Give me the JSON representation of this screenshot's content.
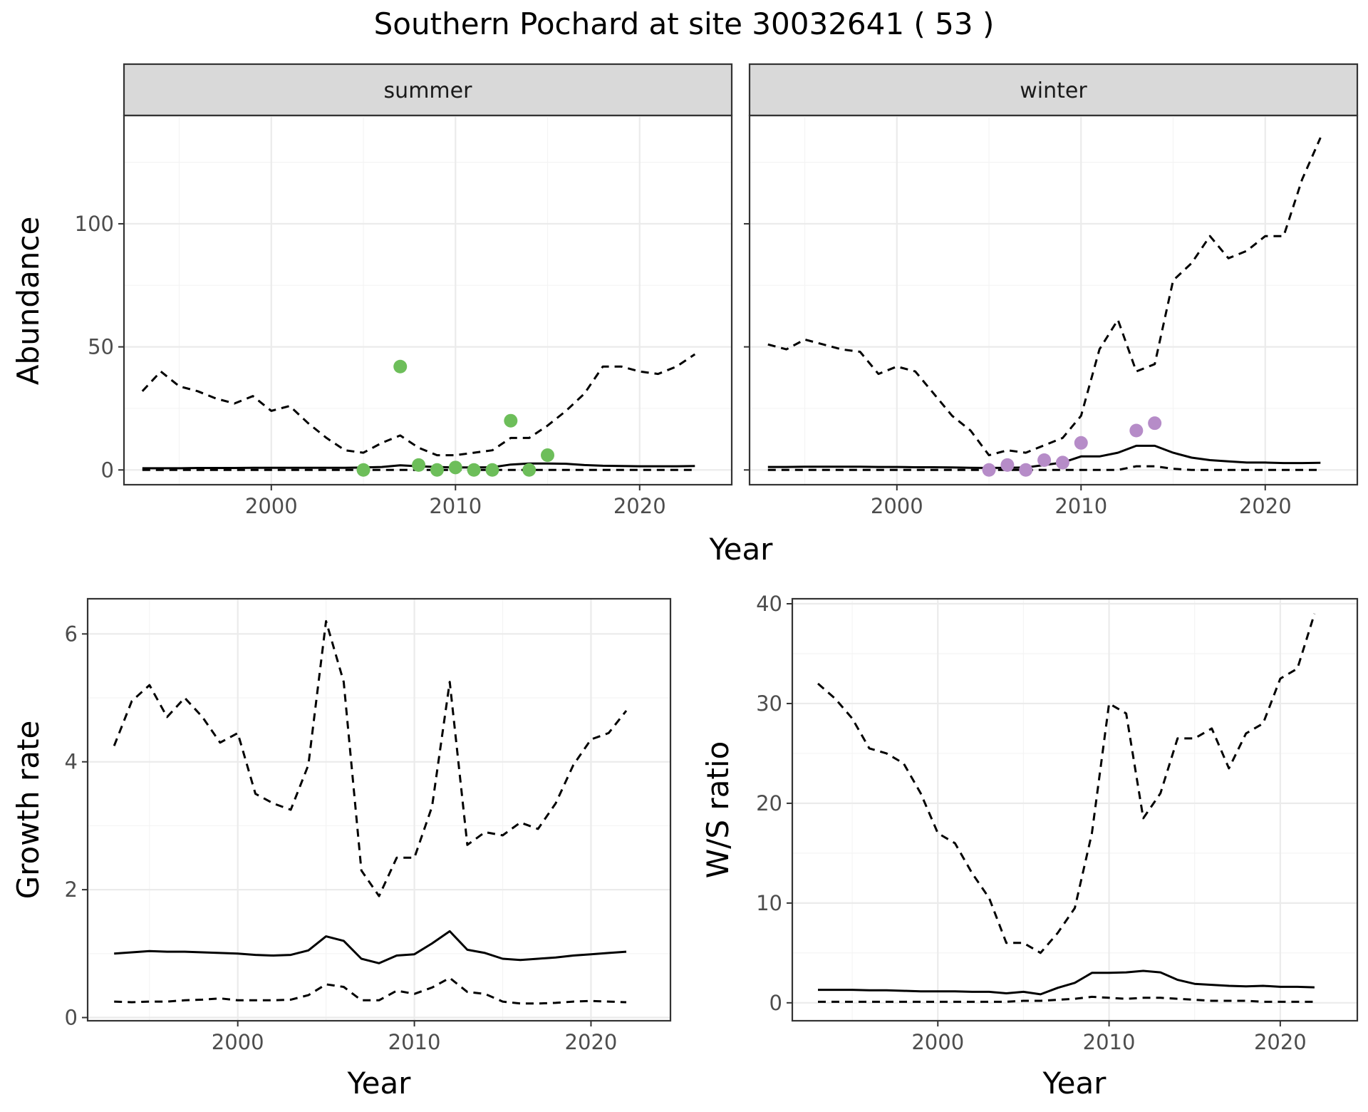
{
  "title": "Southern Pochard at site 30032641 ( 53 )",
  "colors": {
    "summer_points": "#6DBE5A",
    "winter_points": "#B68CC8",
    "lines": "#000000",
    "strip_fill": "#d9d9d9"
  },
  "chart_data": [
    {
      "type": "line",
      "facet": "summer",
      "strip_label": "summer",
      "xlabel": "Year",
      "ylabel": "Abundance",
      "xlim": [
        1992,
        2025
      ],
      "ylim": [
        -6,
        144
      ],
      "xticks": [
        2000,
        2010,
        2020
      ],
      "yticks": [
        0,
        50,
        100
      ],
      "grid": true,
      "x": [
        1993,
        1994,
        1995,
        1996,
        1997,
        1998,
        1999,
        2000,
        2001,
        2002,
        2003,
        2004,
        2005,
        2006,
        2007,
        2008,
        2009,
        2010,
        2011,
        2012,
        2013,
        2014,
        2015,
        2016,
        2017,
        2018,
        2019,
        2020,
        2021,
        2022,
        2023
      ],
      "series": [
        {
          "style": "dashed",
          "values": [
            32,
            40,
            34,
            32,
            29,
            27,
            30,
            24,
            26,
            19,
            13,
            8,
            7,
            11,
            14,
            9,
            6,
            6,
            7,
            8,
            13,
            13,
            18,
            24,
            31,
            42,
            42,
            40,
            39,
            42,
            47
          ]
        },
        {
          "style": "solid",
          "values": [
            0.7,
            0.7,
            0.7,
            0.8,
            0.8,
            0.8,
            0.9,
            0.9,
            0.9,
            0.9,
            0.9,
            0.9,
            1.0,
            1.2,
            1.9,
            1.5,
            1.2,
            1.0,
            1.0,
            1.1,
            2.2,
            2.6,
            2.6,
            2.5,
            2.0,
            1.7,
            1.6,
            1.5,
            1.5,
            1.5,
            1.6
          ]
        },
        {
          "style": "dashed",
          "values": [
            0,
            0,
            0,
            0,
            0,
            0,
            0,
            0,
            0,
            0,
            0,
            0,
            0,
            0,
            0,
            0,
            0,
            0,
            0,
            0,
            0,
            0,
            0,
            0,
            0,
            0,
            0,
            0,
            0,
            0,
            0
          ]
        }
      ],
      "points": {
        "x": [
          2005,
          2007,
          2008,
          2009,
          2010,
          2011,
          2012,
          2013,
          2014,
          2015
        ],
        "y": [
          0,
          42,
          2,
          0,
          1,
          0,
          0,
          20,
          0,
          6
        ]
      }
    },
    {
      "type": "line",
      "facet": "winter",
      "strip_label": "winter",
      "xlabel": "Year",
      "ylabel": "Abundance",
      "xlim": [
        1992,
        2025
      ],
      "ylim": [
        -6,
        144
      ],
      "xticks": [
        2000,
        2010,
        2020
      ],
      "yticks": [
        0,
        50,
        100
      ],
      "grid": true,
      "x": [
        1993,
        1994,
        1995,
        1996,
        1997,
        1998,
        1999,
        2000,
        2001,
        2002,
        2003,
        2004,
        2005,
        2006,
        2007,
        2008,
        2009,
        2010,
        2011,
        2012,
        2013,
        2014,
        2015,
        2016,
        2017,
        2018,
        2019,
        2020,
        2021,
        2022,
        2023
      ],
      "series": [
        {
          "style": "dashed",
          "values": [
            51,
            49,
            53,
            51,
            49,
            48,
            39,
            42,
            40,
            31,
            22,
            16,
            6,
            8,
            7,
            10,
            13,
            22,
            49,
            61,
            40,
            43,
            77,
            84,
            95,
            86,
            89,
            95,
            95,
            118,
            135
          ]
        },
        {
          "style": "solid",
          "values": [
            1.2,
            1.2,
            1.3,
            1.3,
            1.3,
            1.3,
            1.2,
            1.2,
            1.1,
            1.1,
            1.0,
            0.9,
            0.8,
            0.9,
            1.0,
            2.0,
            3.0,
            5.5,
            5.5,
            7.0,
            9.8,
            9.8,
            7.0,
            5.0,
            4.0,
            3.5,
            3.0,
            3.0,
            2.8,
            2.8,
            2.9
          ]
        },
        {
          "style": "dashed",
          "values": [
            0,
            0,
            0,
            0,
            0,
            0,
            0,
            0,
            0,
            0,
            0,
            0,
            0,
            0,
            0,
            0,
            0,
            0,
            0,
            0,
            1.5,
            1.5,
            0.5,
            0,
            0,
            0,
            0,
            0,
            0,
            0,
            0
          ]
        }
      ],
      "points": {
        "x": [
          2005,
          2006,
          2007,
          2008,
          2009,
          2010,
          2013,
          2014
        ],
        "y": [
          0,
          2,
          0,
          4,
          3,
          11,
          16,
          19
        ]
      }
    },
    {
      "type": "line",
      "panel": "growth",
      "xlabel": "Year",
      "ylabel": "Growth rate",
      "xlim": [
        1991.5,
        2024.5
      ],
      "ylim": [
        -0.05,
        6.55
      ],
      "xticks": [
        2000,
        2010,
        2020
      ],
      "yticks": [
        0,
        2,
        4,
        6
      ],
      "grid": true,
      "x": [
        1993,
        1994,
        1995,
        1996,
        1997,
        1998,
        1999,
        2000,
        2001,
        2002,
        2003,
        2004,
        2005,
        2006,
        2007,
        2008,
        2009,
        2010,
        2011,
        2012,
        2013,
        2014,
        2015,
        2016,
        2017,
        2018,
        2019,
        2020,
        2021,
        2022
      ],
      "series": [
        {
          "style": "dashed",
          "values": [
            4.25,
            4.95,
            5.2,
            4.7,
            5.0,
            4.7,
            4.3,
            4.45,
            3.5,
            3.35,
            3.25,
            3.95,
            6.2,
            5.25,
            2.3,
            1.9,
            2.5,
            2.5,
            3.3,
            5.25,
            2.7,
            2.9,
            2.85,
            3.05,
            2.95,
            3.35,
            3.95,
            4.35,
            4.45,
            4.8
          ]
        },
        {
          "style": "solid",
          "values": [
            1.0,
            1.02,
            1.04,
            1.03,
            1.03,
            1.02,
            1.01,
            1.0,
            0.98,
            0.97,
            0.98,
            1.05,
            1.27,
            1.2,
            0.92,
            0.85,
            0.97,
            0.99,
            1.16,
            1.35,
            1.06,
            1.01,
            0.92,
            0.9,
            0.92,
            0.94,
            0.97,
            0.99,
            1.01,
            1.03
          ]
        },
        {
          "style": "dashed",
          "values": [
            0.25,
            0.24,
            0.25,
            0.25,
            0.27,
            0.28,
            0.3,
            0.27,
            0.27,
            0.27,
            0.28,
            0.35,
            0.52,
            0.48,
            0.27,
            0.27,
            0.42,
            0.37,
            0.47,
            0.62,
            0.4,
            0.37,
            0.25,
            0.22,
            0.22,
            0.23,
            0.25,
            0.26,
            0.25,
            0.24
          ]
        }
      ]
    },
    {
      "type": "line",
      "panel": "ws_ratio",
      "xlabel": "Year",
      "ylabel": "W/S ratio",
      "xlim": [
        1991.5,
        2024.5
      ],
      "ylim": [
        -1.8,
        40.5
      ],
      "xticks": [
        2000,
        2010,
        2020
      ],
      "yticks": [
        0,
        10,
        20,
        30,
        40
      ],
      "grid": true,
      "x": [
        1993,
        1994,
        1995,
        1996,
        1997,
        1998,
        1999,
        2000,
        2001,
        2002,
        2003,
        2004,
        2005,
        2006,
        2007,
        2008,
        2009,
        2010,
        2011,
        2012,
        2013,
        2014,
        2015,
        2016,
        2017,
        2018,
        2019,
        2020,
        2021,
        2022
      ],
      "series": [
        {
          "style": "dashed",
          "values": [
            32,
            30.5,
            28.5,
            25.5,
            25,
            24,
            21,
            17,
            16,
            13,
            10.5,
            6,
            6,
            5,
            7,
            9.5,
            17,
            30,
            29,
            18.5,
            21,
            26.5,
            26.5,
            27.5,
            23.5,
            27,
            28,
            32.5,
            33.5,
            39
          ]
        },
        {
          "style": "solid",
          "values": [
            1.3,
            1.3,
            1.3,
            1.25,
            1.25,
            1.2,
            1.15,
            1.15,
            1.15,
            1.1,
            1.1,
            0.95,
            1.1,
            0.85,
            1.5,
            2.0,
            3.0,
            3.0,
            3.05,
            3.2,
            3.05,
            2.3,
            1.9,
            1.8,
            1.7,
            1.65,
            1.7,
            1.6,
            1.6,
            1.55
          ]
        },
        {
          "style": "dashed",
          "values": [
            0.1,
            0.1,
            0.1,
            0.1,
            0.1,
            0.1,
            0.1,
            0.1,
            0.1,
            0.1,
            0.1,
            0.1,
            0.2,
            0.2,
            0.3,
            0.4,
            0.6,
            0.5,
            0.4,
            0.5,
            0.5,
            0.4,
            0.3,
            0.2,
            0.2,
            0.2,
            0.1,
            0.1,
            0.1,
            0.1
          ]
        }
      ]
    }
  ]
}
